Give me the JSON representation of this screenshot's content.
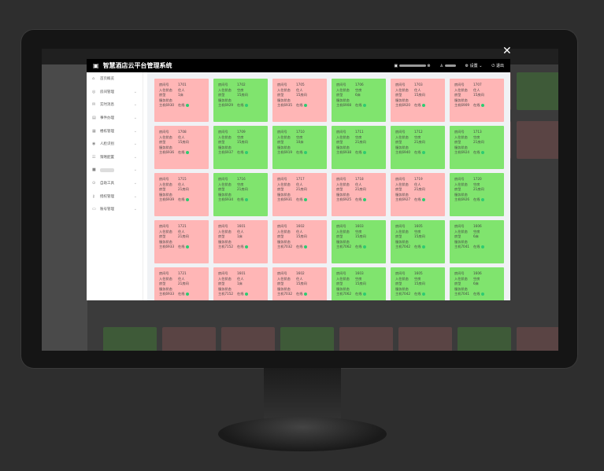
{
  "app": {
    "title": "智慧酒店云平台管理系统",
    "settings": "设置",
    "logout": "退出"
  },
  "sidebar": {
    "items": [
      {
        "label": "首页概览",
        "icon": "home-icon",
        "expandable": false
      },
      {
        "label": "房间管理",
        "icon": "room-icon",
        "expandable": true
      },
      {
        "label": "实时消息",
        "icon": "message-icon",
        "expandable": true
      },
      {
        "label": "事件办理",
        "icon": "document-icon",
        "expandable": true
      },
      {
        "label": "楼栋管理",
        "icon": "building-icon",
        "expandable": true
      },
      {
        "label": "人脸识别",
        "icon": "eye-icon",
        "expandable": true
      },
      {
        "label": "策略配置",
        "icon": "config-icon",
        "expandable": true
      },
      {
        "label": "",
        "icon": "grid-icon",
        "expandable": true
      },
      {
        "label": "自助工具",
        "icon": "location-icon",
        "expandable": true
      },
      {
        "label": "授权管理",
        "icon": "key-icon",
        "expandable": true
      },
      {
        "label": "账号管理",
        "icon": "account-icon",
        "expandable": true
      }
    ]
  },
  "card_labels": {
    "room": "房间号",
    "checkin": "入住状态",
    "type": "房型",
    "service": "服务状态",
    "online": "在线"
  },
  "colors": {
    "occupied": "#ffb6b6",
    "vacant": "#80e46e"
  },
  "rooms": [
    {
      "room": "1701",
      "status": "住人",
      "type": "1床",
      "host": "主机6930"
    },
    {
      "room": "1702",
      "status": "空房",
      "type": "15房间",
      "host": "主机6929"
    },
    {
      "room": "1705",
      "status": "住人",
      "type": "15房间",
      "host": "主机6935"
    },
    {
      "room": "1706",
      "status": "空房",
      "type": "6床",
      "host": "主机6908"
    },
    {
      "room": "1703",
      "status": "住人",
      "type": "15房间",
      "host": "主机6920"
    },
    {
      "room": "1707",
      "status": "住人",
      "type": "15房间",
      "host": "主机6909"
    },
    {
      "room": "1708",
      "status": "住人",
      "type": "15房间",
      "host": "主机6936"
    },
    {
      "room": "1709",
      "status": "空房",
      "type": "15房间",
      "host": "主机6937"
    },
    {
      "room": "1710",
      "status": "空房",
      "type": "10床",
      "host": "主机6919"
    },
    {
      "room": "1711",
      "status": "空房",
      "type": "21房间",
      "host": "主机6938"
    },
    {
      "room": "1712",
      "status": "空房",
      "type": "21房间",
      "host": "主机6940"
    },
    {
      "room": "1713",
      "status": "空房",
      "type": "21房间",
      "host": "主机6924"
    },
    {
      "room": "1715",
      "status": "住人",
      "type": "21房间",
      "host": "主机6939"
    },
    {
      "room": "1716",
      "status": "空房",
      "type": "21房间",
      "host": "主机6934"
    },
    {
      "room": "1717",
      "status": "住人",
      "type": "21房间",
      "host": "主机6931"
    },
    {
      "room": "1718",
      "status": "住人",
      "type": "21房间",
      "host": "主机6925"
    },
    {
      "room": "1719",
      "status": "住人",
      "type": "21房间",
      "host": "主机6927"
    },
    {
      "room": "1720",
      "status": "空房",
      "type": "21房间",
      "host": "主机6926"
    },
    {
      "room": "1721",
      "status": "住人",
      "type": "21房间",
      "host": "主机6933"
    },
    {
      "room": "1601",
      "status": "住人",
      "type": "1床",
      "host": "主机7152"
    },
    {
      "room": "1602",
      "status": "住人",
      "type": "15房间",
      "host": "主机7032"
    },
    {
      "room": "1603",
      "status": "空房",
      "type": "15房间",
      "host": "主机7062"
    },
    {
      "room": "1605",
      "status": "空房",
      "type": "15房间",
      "host": "主机7042"
    },
    {
      "room": "1606",
      "status": "空房",
      "type": "6床",
      "host": "主机7041"
    },
    {
      "room": "1721",
      "status": "住人",
      "type": "21房间",
      "host": "主机6933"
    },
    {
      "room": "1601",
      "status": "住人",
      "type": "1床",
      "host": "主机7152"
    },
    {
      "room": "1602",
      "status": "住人",
      "type": "15房间",
      "host": "主机7032"
    },
    {
      "room": "1603",
      "status": "空房",
      "type": "15房间",
      "host": "主机7062"
    },
    {
      "room": "1605",
      "status": "空房",
      "type": "15房间",
      "host": "主机7042"
    },
    {
      "room": "1606",
      "status": "空房",
      "type": "6床",
      "host": "主机7041"
    }
  ]
}
